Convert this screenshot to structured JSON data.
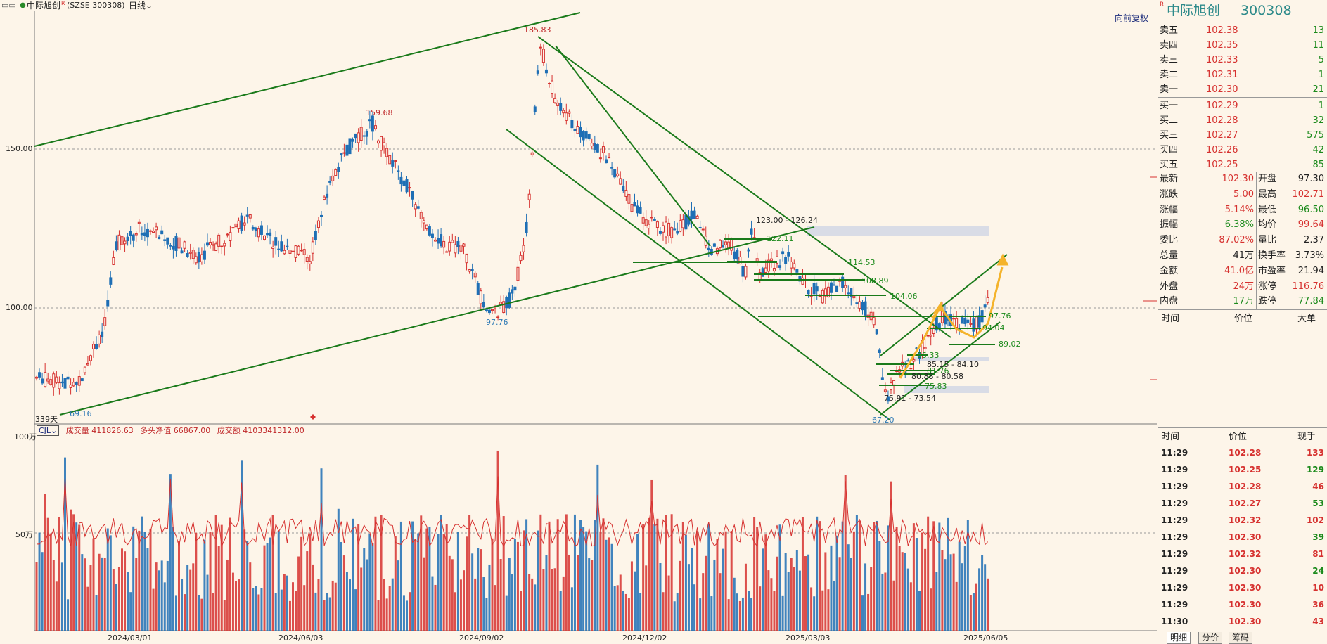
{
  "header": {
    "title": "中际旭创",
    "superscript": "R",
    "code": "SZSE 300308",
    "period": "日线",
    "restore_button": "向前复权"
  },
  "price_axis": {
    "ticks": [
      "150.00",
      "100.00"
    ]
  },
  "date_axis": {
    "ticks": [
      "2024/03/01",
      "2024/06/03",
      "2024/09/02",
      "2024/12/02",
      "2025/03/03",
      "2025/06/05"
    ]
  },
  "price_annotations": {
    "high_all": "185.83",
    "high_mid": "159.68",
    "low_first": "69.16",
    "low_mid": "97.76",
    "low_recent": "67.20",
    "bars_count": "339天"
  },
  "levels": [
    "123.00 - 126.24",
    "122.11",
    "114.53",
    "108.89",
    "104.06",
    "97.76",
    "94.04",
    "89.02",
    "85.33",
    "85.15 - 84.10",
    "81.76",
    "80.88 - 80.58",
    "75.83",
    "75.91 - 73.54"
  ],
  "volume_header": {
    "indicator": "CJL",
    "volume_label": "成交量",
    "volume_value": "411826.63",
    "net_label": "多头净值",
    "net_value": "66867.00",
    "amount_label": "成交额",
    "amount_value": "4103341312.00"
  },
  "volume_axis": {
    "ticks": [
      "100万",
      "50万"
    ]
  },
  "panel": {
    "name": "中际旭创",
    "name_superscript": "R",
    "code": "300308",
    "asks": [
      {
        "label": "卖五",
        "price": "102.38",
        "vol": "13"
      },
      {
        "label": "卖四",
        "price": "102.35",
        "vol": "11"
      },
      {
        "label": "卖三",
        "price": "102.33",
        "vol": "5"
      },
      {
        "label": "卖二",
        "price": "102.31",
        "vol": "1"
      },
      {
        "label": "卖一",
        "price": "102.30",
        "vol": "21"
      }
    ],
    "bids": [
      {
        "label": "买一",
        "price": "102.29",
        "vol": "1"
      },
      {
        "label": "买二",
        "price": "102.28",
        "vol": "32"
      },
      {
        "label": "买三",
        "price": "102.27",
        "vol": "575"
      },
      {
        "label": "买四",
        "price": "102.26",
        "vol": "42"
      },
      {
        "label": "买五",
        "price": "102.25",
        "vol": "85"
      }
    ],
    "stats": [
      {
        "l1": "最新",
        "v1": "102.30",
        "c1": "red",
        "l2": "开盘",
        "v2": "97.30",
        "c2": "dark"
      },
      {
        "l1": "涨跌",
        "v1": "5.00",
        "c1": "red",
        "l2": "最高",
        "v2": "102.71",
        "c2": "red"
      },
      {
        "l1": "涨幅",
        "v1": "5.14%",
        "c1": "red",
        "l2": "最低",
        "v2": "96.50",
        "c2": "green"
      },
      {
        "l1": "振幅",
        "v1": "6.38%",
        "c1": "green",
        "l2": "均价",
        "v2": "99.64",
        "c2": "red"
      },
      {
        "l1": "委比",
        "v1": "87.02%",
        "c1": "red",
        "l2": "量比",
        "v2": "2.37",
        "c2": "dark"
      },
      {
        "l1": "总量",
        "v1": "41万",
        "c1": "dark",
        "l2": "换手率",
        "v2": "3.73%",
        "c2": "dark"
      },
      {
        "l1": "金额",
        "v1": "41.0亿",
        "c1": "red",
        "l2": "市盈率",
        "v2": "21.94",
        "c2": "dark"
      },
      {
        "l1": "外盘",
        "v1": "24万",
        "c1": "red",
        "l2": "涨停",
        "v2": "116.76",
        "c2": "red"
      },
      {
        "l1": "内盘",
        "v1": "17万",
        "c1": "green",
        "l2": "跌停",
        "v2": "77.84",
        "c2": "green"
      }
    ],
    "big_orders_header": {
      "time": "时间",
      "price": "价位",
      "big": "大单"
    },
    "ticks_header": {
      "time": "时间",
      "price": "价位",
      "vol": "现手"
    },
    "ticks": [
      {
        "time": "11:29",
        "price": "102.28",
        "vol": "133",
        "pc": "red",
        "vc": "red"
      },
      {
        "time": "11:29",
        "price": "102.25",
        "vol": "129",
        "pc": "red",
        "vc": "green"
      },
      {
        "time": "11:29",
        "price": "102.28",
        "vol": "46",
        "pc": "red",
        "vc": "red"
      },
      {
        "time": "11:29",
        "price": "102.27",
        "vol": "53",
        "pc": "red",
        "vc": "green"
      },
      {
        "time": "11:29",
        "price": "102.32",
        "vol": "102",
        "pc": "red",
        "vc": "red"
      },
      {
        "time": "11:29",
        "price": "102.30",
        "vol": "39",
        "pc": "red",
        "vc": "green"
      },
      {
        "time": "11:29",
        "price": "102.32",
        "vol": "81",
        "pc": "red",
        "vc": "red"
      },
      {
        "time": "11:29",
        "price": "102.30",
        "vol": "24",
        "pc": "red",
        "vc": "green"
      },
      {
        "time": "11:29",
        "price": "102.30",
        "vol": "10",
        "pc": "red",
        "vc": "red"
      },
      {
        "time": "11:29",
        "price": "102.30",
        "vol": "36",
        "pc": "red",
        "vc": "red"
      },
      {
        "time": "11:30",
        "price": "102.30",
        "vol": "43",
        "pc": "red",
        "vc": "red"
      }
    ],
    "tabs": [
      "明细",
      "分价",
      "筹码"
    ]
  },
  "colors": {
    "background": "#fdf5e9",
    "up": "#d6312f",
    "down": "#1f6fb5",
    "trendline": "#1a7a1a",
    "arrow": "#f4b32b"
  }
}
